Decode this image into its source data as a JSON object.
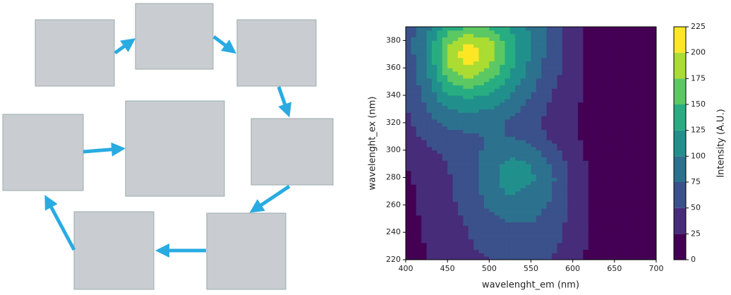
{
  "chart_data": {
    "type": "contour",
    "xlabel": "wavelenght_em (nm)",
    "ylabel": "wavelenght_ex (nm)",
    "colorbar_label": "Intensity (A.U.)",
    "xlim": [
      400,
      700
    ],
    "ylim": [
      220,
      390
    ],
    "xticks": [
      400,
      450,
      500,
      550,
      600,
      650,
      700
    ],
    "yticks": [
      220,
      240,
      260,
      280,
      300,
      320,
      340,
      360,
      380
    ],
    "levels": [
      0,
      25,
      50,
      75,
      100,
      125,
      150,
      175,
      200,
      225
    ],
    "colors": [
      "#440154",
      "#472c7a",
      "#3b518b",
      "#2c718e",
      "#21908d",
      "#27ad81",
      "#5cc863",
      "#aadc32",
      "#fde725"
    ],
    "x": [
      400,
      425,
      450,
      475,
      500,
      525,
      550,
      575,
      600,
      625,
      650,
      675,
      700
    ],
    "y": [
      220,
      230,
      240,
      250,
      260,
      270,
      280,
      290,
      300,
      310,
      320,
      330,
      340,
      350,
      360,
      370,
      380,
      390
    ],
    "z": [
      [
        15,
        25,
        38,
        45,
        50,
        52,
        55,
        50,
        35,
        15,
        10,
        10,
        10
      ],
      [
        15,
        26,
        40,
        48,
        55,
        60,
        62,
        55,
        38,
        18,
        10,
        10,
        10
      ],
      [
        15,
        28,
        42,
        50,
        62,
        68,
        70,
        60,
        40,
        20,
        10,
        10,
        10
      ],
      [
        15,
        30,
        45,
        52,
        70,
        78,
        78,
        65,
        42,
        20,
        10,
        10,
        10
      ],
      [
        15,
        33,
        46,
        55,
        80,
        90,
        85,
        72,
        45,
        20,
        10,
        10,
        10
      ],
      [
        15,
        35,
        48,
        58,
        88,
        105,
        95,
        78,
        45,
        20,
        10,
        10,
        10
      ],
      [
        20,
        38,
        48,
        60,
        92,
        110,
        105,
        80,
        45,
        20,
        10,
        10,
        10
      ],
      [
        25,
        40,
        50,
        62,
        90,
        108,
        100,
        72,
        40,
        18,
        10,
        10,
        10
      ],
      [
        35,
        45,
        55,
        65,
        80,
        90,
        85,
        60,
        35,
        15,
        10,
        10,
        10
      ],
      [
        40,
        55,
        65,
        72,
        75,
        75,
        65,
        45,
        30,
        15,
        10,
        10,
        10
      ],
      [
        45,
        65,
        80,
        85,
        82,
        72,
        58,
        42,
        30,
        15,
        10,
        10,
        10
      ],
      [
        48,
        75,
        100,
        105,
        100,
        85,
        65,
        45,
        30,
        15,
        10,
        10,
        10
      ],
      [
        52,
        82,
        120,
        130,
        120,
        100,
        75,
        50,
        32,
        15,
        10,
        10,
        10
      ],
      [
        55,
        90,
        150,
        165,
        150,
        115,
        85,
        55,
        35,
        15,
        10,
        10,
        10
      ],
      [
        58,
        95,
        170,
        200,
        175,
        130,
        92,
        60,
        38,
        15,
        10,
        10,
        10
      ],
      [
        60,
        100,
        180,
        220,
        190,
        140,
        100,
        62,
        40,
        15,
        10,
        10,
        10
      ],
      [
        62,
        100,
        170,
        195,
        180,
        135,
        100,
        65,
        40,
        15,
        10,
        10,
        10
      ],
      [
        60,
        90,
        135,
        150,
        145,
        120,
        95,
        65,
        40,
        15,
        10,
        10,
        10
      ]
    ]
  }
}
